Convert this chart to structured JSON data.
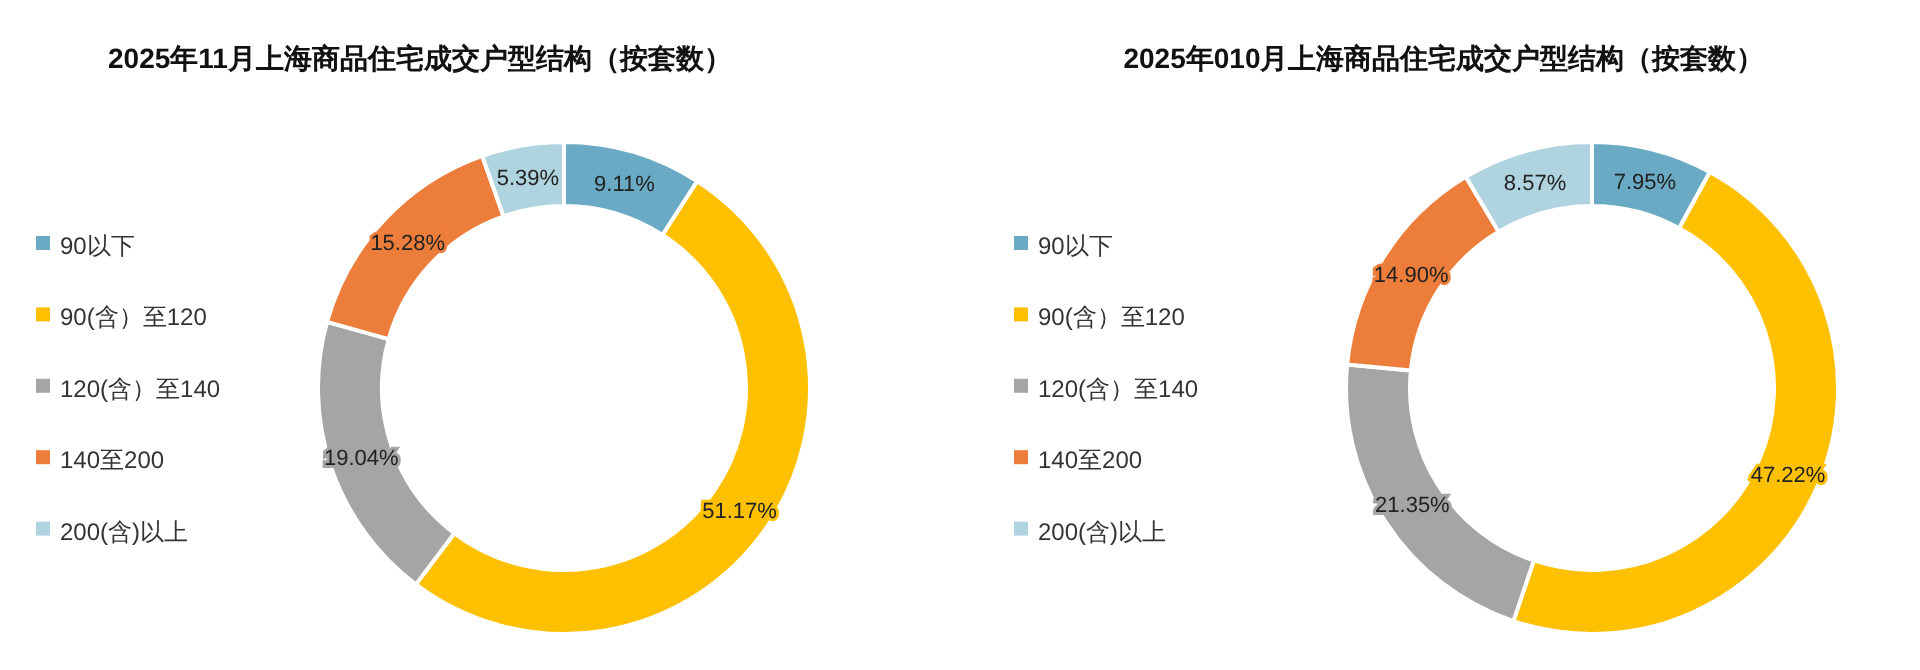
{
  "chart_data": [
    {
      "type": "donut",
      "title": "2025年11月上海商品住宅成交户型结构（按套数）",
      "categories": [
        "90以下",
        "90(含）至120",
        "120(含）至140",
        "140至200",
        "200(含)以上"
      ],
      "values": [
        9.11,
        51.17,
        19.04,
        15.28,
        5.39
      ],
      "value_labels": [
        "9.11%",
        "51.17%",
        "19.04%",
        "15.28%",
        "5.39%"
      ],
      "colors": [
        "#6aaac4",
        "#ffc000",
        "#a5a5a5",
        "#ed7d3a",
        "#b0d4df"
      ],
      "legend": "left"
    },
    {
      "type": "donut",
      "title": "2025年010月上海商品住宅成交户型结构（按套数）",
      "categories": [
        "90以下",
        "90(含）至120",
        "120(含）至140",
        "140至200",
        "200(含)以上"
      ],
      "values": [
        7.95,
        47.22,
        21.35,
        14.9,
        8.57
      ],
      "value_labels": [
        "7.95%",
        "47.22%",
        "21.35%",
        "14.90%",
        "8.57%"
      ],
      "colors": [
        "#6aaac4",
        "#ffc000",
        "#a5a5a5",
        "#ed7d3a",
        "#b0d4df"
      ],
      "legend": "left"
    }
  ]
}
